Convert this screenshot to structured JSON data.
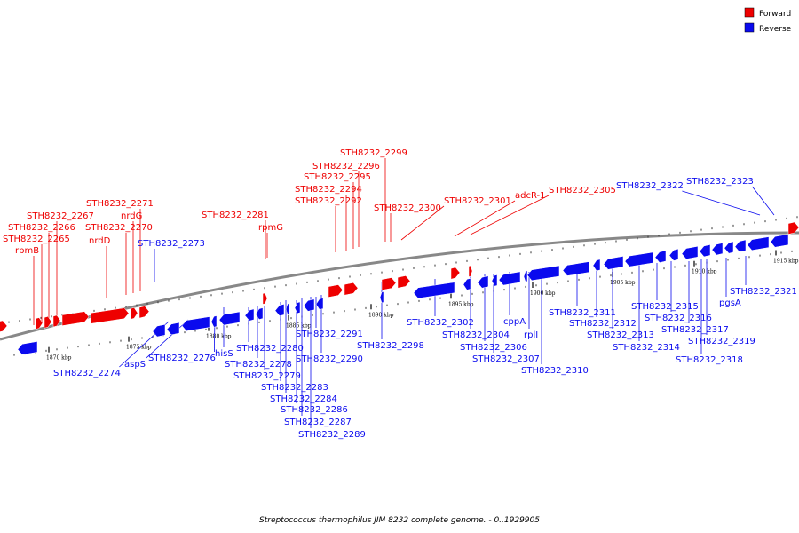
{
  "colors": {
    "forward": "#ee0000",
    "reverse": "#0a0aee",
    "backbone": "#888888"
  },
  "legend": {
    "forward": "Forward",
    "reverse": "Reverse"
  },
  "caption": "Streptococcus thermophilus JIM 8232 complete genome. - 0..1929905",
  "scale_ticks": [
    "1870 kbp",
    "1875 kbp",
    "1880 kbp",
    "1885 kbp",
    "1890 kbp",
    "1895 kbp",
    "1900 kbp",
    "1905 kbp",
    "1910 kbp",
    "1915 kbp"
  ],
  "forward_labels": [
    "rpmB",
    "STH8232_2265",
    "STH8232_2266",
    "STH8232_2267",
    "nrdD",
    "STH8232_2270",
    "nrdG",
    "STH8232_2271",
    "STH8232_2281",
    "rpmG",
    "STH8232_2292",
    "STH8232_2294",
    "STH8232_2295",
    "STH8232_2296",
    "STH8232_2299",
    "STH8232_2300",
    "STH8232_2301",
    "adcR-1",
    "STH8232_2305"
  ],
  "reverse_labels": [
    "STH8232_2273",
    "STH8232_2274",
    "aspS",
    "STH8232_2276",
    "hisS",
    "STH8232_2280",
    "STH8232_2278",
    "STH8232_2279",
    "STH8232_2283",
    "STH8232_2284",
    "STH8232_2286",
    "STH8232_2287",
    "STH8232_2289",
    "STH8232_2291",
    "STH8232_2290",
    "STH8232_2298",
    "STH8232_2302",
    "STH8232_2304",
    "STH8232_2306",
    "STH8232_2307",
    "cppA",
    "rplI",
    "STH8232_2310",
    "STH8232_2311",
    "STH8232_2312",
    "STH8232_2313",
    "STH8232_2314",
    "STH8232_2315",
    "STH8232_2316",
    "STH8232_2317",
    "STH8232_2319",
    "STH8232_2318",
    "pgsA",
    "STH8232_2321",
    "STH8232_2322",
    "STH8232_2323"
  ]
}
